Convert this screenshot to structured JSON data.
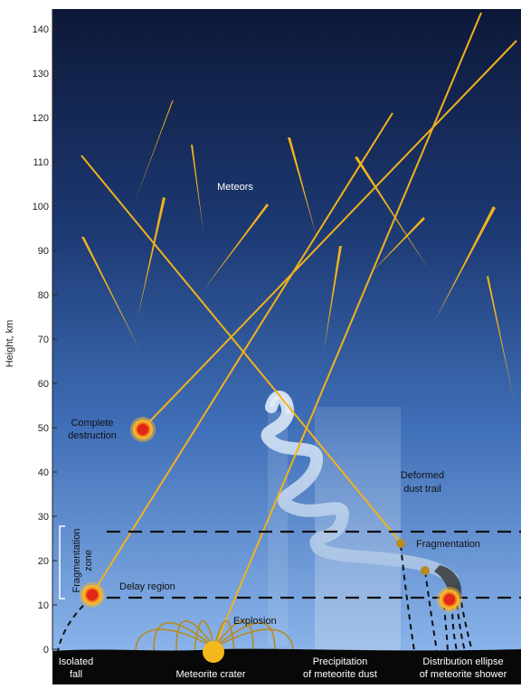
{
  "axis": {
    "ylabel": "Height, km",
    "ticks": [
      "0",
      "10",
      "20",
      "30",
      "40",
      "50",
      "60",
      "70",
      "80",
      "90",
      "100",
      "110",
      "120",
      "130",
      "140"
    ]
  },
  "labels": {
    "meteors": "Meteors",
    "complete_destruction": [
      "Complete",
      "destruction"
    ],
    "deformed_dust_trail": [
      "Deformed",
      "dust trail"
    ],
    "fragmentation": "Fragmentation",
    "fragmentation_zone": [
      "Fragmentation",
      "zone"
    ],
    "delay_region": "Delay region",
    "explosion": "Explosion",
    "isolated_fall": [
      "Isolated",
      "fall"
    ],
    "meteorite_crater": "Meteorite crater",
    "precipitation": [
      "Precipitation",
      "of meteorite dust"
    ],
    "distribution_ellipse": [
      "Distribution ellipse",
      "of meteorite shower"
    ]
  },
  "colors": {
    "sky_top": "#0e1a3c",
    "sky_bottom": "#86b0e6",
    "meteor": "#f2b21c",
    "fireball_outer": "#f7a21a",
    "fireball_inner": "#e8321c",
    "ground": "#080808"
  }
}
